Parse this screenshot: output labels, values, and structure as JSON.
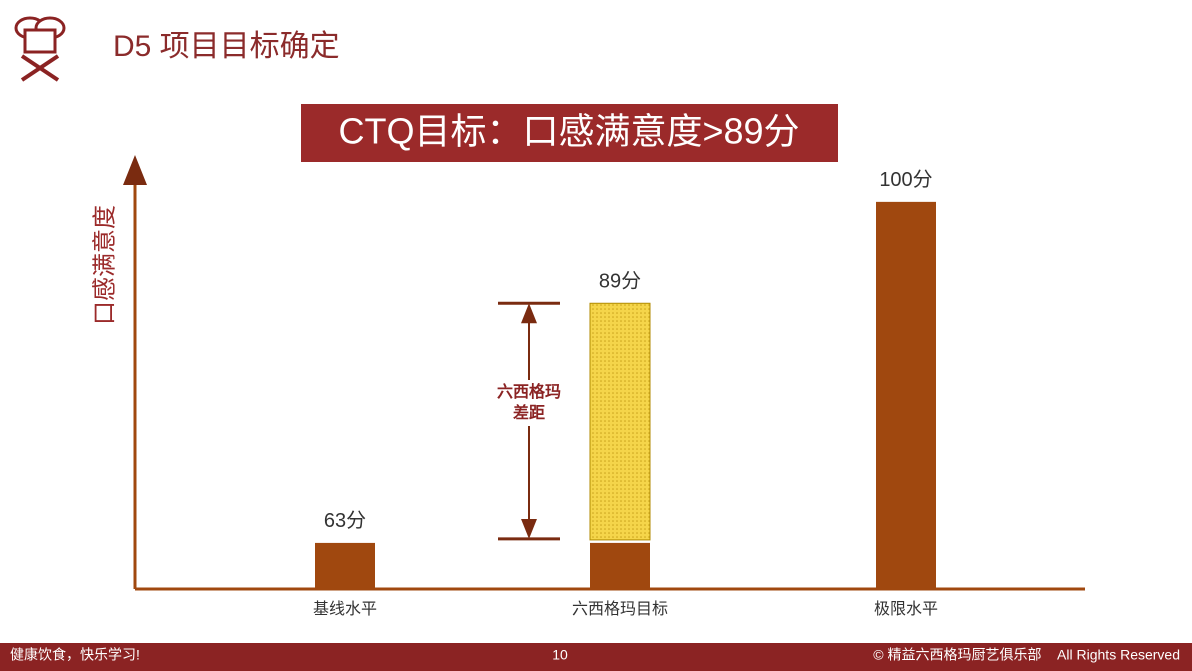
{
  "header": {
    "title": "D5 项目目标确定"
  },
  "chart_data": {
    "type": "bar",
    "title": "CTQ目标：口感满意度>89分",
    "y_label": "口感满意度",
    "categories": [
      "基线水平",
      "六西格玛目标",
      "极限水平"
    ],
    "values": [
      63,
      89,
      100
    ],
    "value_labels": [
      "63分",
      "89分",
      "100分"
    ],
    "color": "#a0480f",
    "gap_color": "#f5d54a",
    "annotation": [
      "六西格玛",
      "差距"
    ],
    "ylim": [
      58,
      104
    ]
  },
  "footer": {
    "left": "健康饮食，快乐学习!",
    "page": "10",
    "right": "© 精益六西格玛厨艺俱乐部    All Rights Reserved"
  }
}
